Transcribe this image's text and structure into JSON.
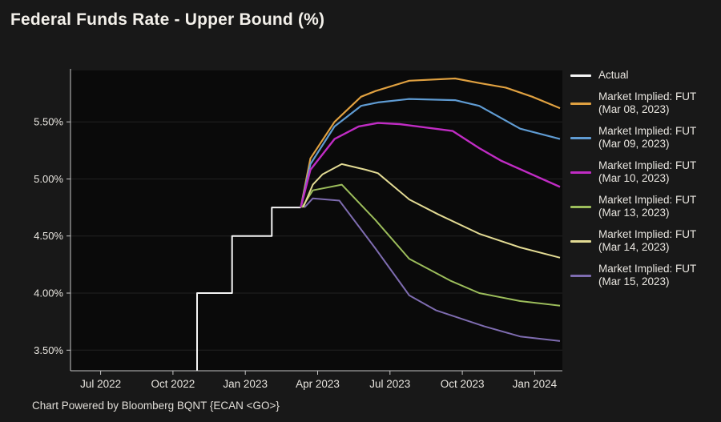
{
  "title": "Federal Funds Rate - Upper Bound (%)",
  "footer": "Chart Powered by Bloomberg BQNT {ECAN <GO>}",
  "colors": {
    "page_bg": "#181818",
    "plot_bg": "#0a0a0a",
    "grid": "#232323",
    "axis": "#c6c6c6",
    "tick_label": "#e8e5df",
    "title_text": "#f3f0ea",
    "legend_text": "#e8e5df",
    "footer_text": "#e0ddd7"
  },
  "chart_data": {
    "type": "line",
    "title": "Federal Funds Rate - Upper Bound (%)",
    "grid": "horizontal",
    "legend_position": "right",
    "x_axis": {
      "unit": "months since Jun 1 2022",
      "lim": [
        -0.25,
        20.15
      ],
      "tick_positions": [
        1,
        4,
        7,
        10,
        13,
        16,
        19
      ],
      "tick_labels": [
        "Jul 2022",
        "Oct 2022",
        "Jan 2023",
        "Apr 2023",
        "Jul 2023",
        "Oct 2023",
        "Jan 2024"
      ]
    },
    "y_axis": {
      "unit": "percent",
      "lim": [
        3.32,
        5.95
      ],
      "ticks": [
        3.5,
        4.0,
        4.5,
        5.0,
        5.5
      ],
      "format": "0.00%"
    },
    "series": [
      {
        "id": "actual",
        "name": "Actual",
        "legend_lines": [
          "Actual"
        ],
        "color": "#f5f5f5",
        "width": 2,
        "x": [
          5.0,
          5.0,
          6.45,
          6.45,
          8.1,
          8.1,
          9.3
        ],
        "y": [
          3.32,
          4.0,
          4.0,
          4.5,
          4.5,
          4.75,
          4.75
        ]
      },
      {
        "id": "fut-mar-08-2023",
        "name": "Market Implied: FUT (Mar 08, 2023)",
        "legend_lines": [
          "Market Implied: FUT",
          "(Mar 08, 2023)"
        ],
        "color": "#dfa040",
        "width": 2.2,
        "x": [
          9.3,
          9.7,
          10.7,
          11.8,
          12.4,
          13.8,
          15.7,
          16.7,
          17.8,
          18.9,
          20.05
        ],
        "y": [
          4.75,
          5.18,
          5.5,
          5.72,
          5.77,
          5.86,
          5.88,
          5.84,
          5.8,
          5.72,
          5.62
        ]
      },
      {
        "id": "fut-mar-09-2023",
        "name": "Market Implied: FUT (Mar 09, 2023)",
        "legend_lines": [
          "Market Implied: FUT",
          "(Mar 09, 2023)"
        ],
        "color": "#5f9bd2",
        "width": 2.2,
        "x": [
          9.3,
          9.7,
          10.7,
          11.8,
          12.5,
          13.8,
          15.7,
          16.7,
          18.4,
          20.05
        ],
        "y": [
          4.75,
          5.13,
          5.46,
          5.64,
          5.67,
          5.7,
          5.69,
          5.64,
          5.44,
          5.35
        ]
      },
      {
        "id": "fut-mar-10-2023",
        "name": "Market Implied: FUT (Mar 10, 2023)",
        "legend_lines": [
          "Market Implied: FUT",
          "(Mar 10, 2023)"
        ],
        "color": "#c02cc4",
        "width": 2.4,
        "x": [
          9.3,
          9.7,
          10.7,
          11.7,
          12.5,
          13.4,
          15.6,
          16.7,
          17.6,
          20.05
        ],
        "y": [
          4.75,
          5.08,
          5.35,
          5.46,
          5.49,
          5.48,
          5.42,
          5.27,
          5.16,
          4.93
        ]
      },
      {
        "id": "fut-mar-13-2023",
        "name": "Market Implied: FUT (Mar 13, 2023)",
        "legend_lines": [
          "Market Implied: FUT",
          "(Mar 13, 2023)"
        ],
        "color": "#9cbd5b",
        "width": 2,
        "x": [
          9.35,
          9.8,
          11.0,
          12.4,
          13.8,
          15.5,
          16.7,
          18.4,
          20.05
        ],
        "y": [
          4.75,
          4.9,
          4.95,
          4.64,
          4.3,
          4.11,
          4.0,
          3.93,
          3.89
        ]
      },
      {
        "id": "fut-mar-14-2023",
        "name": "Market Implied: FUT (Mar 14, 2023)",
        "legend_lines": [
          "Market Implied: FUT",
          "(Mar 14, 2023)"
        ],
        "color": "#e3db94",
        "width": 2,
        "x": [
          9.4,
          9.8,
          10.2,
          11.0,
          12.0,
          12.5,
          13.8,
          15.0,
          16.7,
          18.4,
          20.05
        ],
        "y": [
          4.75,
          4.95,
          5.04,
          5.13,
          5.08,
          5.05,
          4.82,
          4.69,
          4.52,
          4.4,
          4.31
        ]
      },
      {
        "id": "fut-mar-15-2023",
        "name": "Market Implied: FUT (Mar 15, 2023)",
        "legend_lines": [
          "Market Implied: FUT",
          "(Mar 15, 2023)"
        ],
        "color": "#7e6cb0",
        "width": 2,
        "x": [
          9.45,
          9.8,
          10.9,
          12.4,
          13.8,
          14.9,
          16.9,
          18.4,
          20.05
        ],
        "y": [
          4.75,
          4.83,
          4.81,
          4.39,
          3.98,
          3.85,
          3.71,
          3.62,
          3.58
        ]
      }
    ]
  }
}
